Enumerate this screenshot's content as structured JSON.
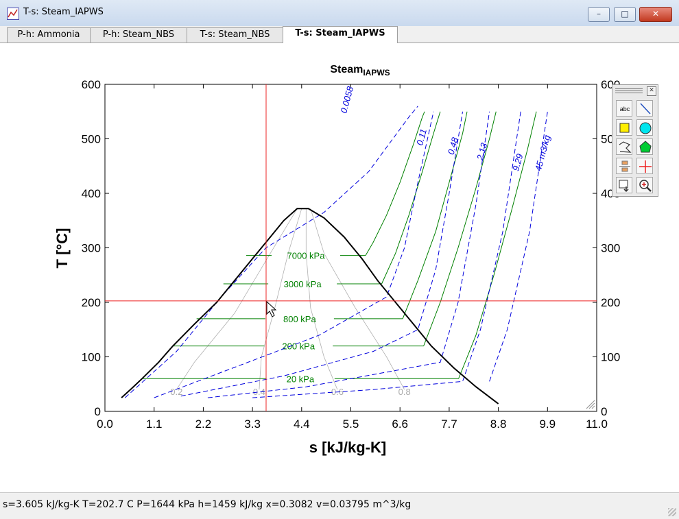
{
  "window": {
    "title": "T-s: Steam_IAPWS",
    "minimize": "–",
    "maximize": "□",
    "close": "✕"
  },
  "tabs": [
    {
      "label": "P-h: Ammonia",
      "active": false
    },
    {
      "label": "P-h: Steam_NBS",
      "active": false
    },
    {
      "label": "T-s: Steam_NBS",
      "active": false
    },
    {
      "label": "T-s: Steam_IAPWS",
      "active": true
    }
  ],
  "toolbox": {
    "close": "✕",
    "tools": [
      "text-tool",
      "line-tool",
      "rectangle-tool",
      "ellipse-tool",
      "polyline-tool",
      "polygon-tool",
      "symbol-tool",
      "crosshair-tool",
      "export-tool",
      "zoom-tool"
    ],
    "text_tool_label": "abc"
  },
  "status": "s=3.605 kJ/kg-K   T=202.7 C   P=1644 kPa   h=1459 kJ/kg   x=0.3082   v=0.03795 m^3/kg",
  "colors": {
    "isobar": "#008000",
    "isochore": "#0000dd",
    "dome": "#000000",
    "quality": "#b0b0b0",
    "cursor": "#ee2222"
  },
  "chart_data": {
    "type": "line",
    "title": "Steam",
    "title_subscript": "IAPWS",
    "xlabel": "s [kJ/kg-K]",
    "ylabel": "T [°C]",
    "xlim": [
      0,
      11
    ],
    "ylim": [
      0,
      600
    ],
    "xticks": [
      "0.0",
      "1.1",
      "2.2",
      "3.3",
      "4.4",
      "5.5",
      "6.6",
      "7.7",
      "8.8",
      "9.9",
      "11.0"
    ],
    "yticks": [
      "0",
      "100",
      "200",
      "300",
      "400",
      "500",
      "600"
    ],
    "cursor": {
      "s": 3.605,
      "T": 202.7
    },
    "saturation_dome": {
      "liquid": [
        [
          0.37,
          25
        ],
        [
          0.57,
          40
        ],
        [
          0.83,
          60
        ],
        [
          1.2,
          90
        ],
        [
          1.52,
          120
        ],
        [
          2.0,
          160
        ],
        [
          2.5,
          200
        ],
        [
          2.9,
          240
        ],
        [
          3.3,
          280
        ],
        [
          3.7,
          320
        ],
        [
          4.0,
          350
        ],
        [
          4.3,
          372
        ]
      ],
      "vapor": [
        [
          4.3,
          372
        ],
        [
          4.55,
          372
        ],
        [
          4.9,
          355
        ],
        [
          5.35,
          320
        ],
        [
          5.75,
          280
        ],
        [
          6.1,
          240
        ],
        [
          6.5,
          200
        ],
        [
          6.9,
          160
        ],
        [
          7.3,
          120
        ],
        [
          7.8,
          80
        ],
        [
          8.3,
          45
        ],
        [
          8.8,
          14
        ]
      ]
    },
    "isobars": [
      {
        "label": "7000 kPa",
        "T": 286,
        "s_liquid": 3.16,
        "s_vapor": 5.83,
        "superheat": [
          [
            5.83,
            286
          ],
          [
            6.0,
            310
          ],
          [
            6.3,
            360
          ],
          [
            6.6,
            420
          ],
          [
            6.9,
            490
          ],
          [
            7.1,
            540
          ],
          [
            7.15,
            550
          ]
        ]
      },
      {
        "label": "3000 kPa",
        "T": 234,
        "s_liquid": 2.65,
        "s_vapor": 6.19,
        "superheat": [
          [
            6.19,
            234
          ],
          [
            6.5,
            290
          ],
          [
            6.8,
            360
          ],
          [
            7.1,
            440
          ],
          [
            7.35,
            510
          ],
          [
            7.5,
            550
          ]
        ]
      },
      {
        "label": "800 kPa",
        "T": 170,
        "s_liquid": 2.05,
        "s_vapor": 6.66,
        "superheat": [
          [
            6.66,
            170
          ],
          [
            7.0,
            240
          ],
          [
            7.4,
            330
          ],
          [
            7.7,
            420
          ],
          [
            8.0,
            510
          ],
          [
            8.1,
            550
          ]
        ]
      },
      {
        "label": "200 kPa",
        "T": 120,
        "s_liquid": 1.53,
        "s_vapor": 7.13,
        "superheat": [
          [
            7.13,
            120
          ],
          [
            7.5,
            200
          ],
          [
            7.9,
            300
          ],
          [
            8.3,
            410
          ],
          [
            8.6,
            500
          ],
          [
            8.75,
            550
          ]
        ]
      },
      {
        "label": "20 kPa",
        "T": 60,
        "s_liquid": 0.83,
        "s_vapor": 7.91,
        "superheat": [
          [
            7.91,
            60
          ],
          [
            8.3,
            140
          ],
          [
            8.7,
            250
          ],
          [
            9.1,
            370
          ],
          [
            9.45,
            480
          ],
          [
            9.65,
            550
          ]
        ]
      }
    ],
    "quality_lines": [
      {
        "label": "0.2",
        "points": [
          [
            4.3,
            372
          ],
          [
            3.7,
            290
          ],
          [
            2.9,
            180
          ],
          [
            2.0,
            90
          ],
          [
            1.6,
            40
          ]
        ]
      },
      {
        "label": "0.4",
        "points": [
          [
            4.4,
            372
          ],
          [
            4.1,
            290
          ],
          [
            3.8,
            190
          ],
          [
            3.5,
            100
          ],
          [
            3.45,
            40
          ]
        ]
      },
      {
        "label": "0.6",
        "points": [
          [
            4.5,
            372
          ],
          [
            4.5,
            290
          ],
          [
            4.6,
            190
          ],
          [
            4.9,
            100
          ],
          [
            5.2,
            40
          ]
        ]
      },
      {
        "label": "0.8",
        "points": [
          [
            4.6,
            372
          ],
          [
            4.9,
            290
          ],
          [
            5.6,
            190
          ],
          [
            6.3,
            100
          ],
          [
            6.7,
            40
          ]
        ]
      }
    ],
    "isochores": [
      {
        "label": "0.0058",
        "points": [
          [
            0.45,
            25
          ],
          [
            1.6,
            110
          ],
          [
            2.6,
            210
          ],
          [
            3.6,
            300
          ],
          [
            4.9,
            365
          ],
          [
            5.9,
            440
          ],
          [
            6.8,
            540
          ],
          [
            7.0,
            560
          ]
        ],
        "label_at": [
          5.4,
          546
        ]
      },
      {
        "label": "0.11",
        "points": [
          [
            1.1,
            25
          ],
          [
            3.2,
            90
          ],
          [
            4.8,
            140
          ],
          [
            6.3,
            210
          ],
          [
            6.7,
            300
          ],
          [
            7.0,
            420
          ],
          [
            7.35,
            550
          ]
        ],
        "label_at": [
          7.1,
          487
        ]
      },
      {
        "label": "0.48",
        "points": [
          [
            1.7,
            28
          ],
          [
            4.0,
            65
          ],
          [
            6.0,
            110
          ],
          [
            7.0,
            150
          ],
          [
            7.4,
            260
          ],
          [
            7.7,
            400
          ],
          [
            8.0,
            550
          ]
        ],
        "label_at": [
          7.8,
          470
        ]
      },
      {
        "label": "2.13",
        "points": [
          [
            2.3,
            25
          ],
          [
            4.5,
            45
          ],
          [
            6.5,
            75
          ],
          [
            7.5,
            90
          ],
          [
            7.9,
            200
          ],
          [
            8.3,
            380
          ],
          [
            8.6,
            550
          ]
        ],
        "label_at": [
          8.45,
          460
        ]
      },
      {
        "label": "9.29",
        "points": [
          [
            3.3,
            25
          ],
          [
            6.0,
            40
          ],
          [
            8.0,
            55
          ],
          [
            8.4,
            150
          ],
          [
            8.9,
            330
          ],
          [
            9.3,
            550
          ]
        ],
        "label_at": [
          9.25,
          440
        ]
      },
      {
        "label": "45 m3/kg",
        "points": [
          [
            8.6,
            55
          ],
          [
            9.0,
            150
          ],
          [
            9.5,
            330
          ],
          [
            9.9,
            550
          ]
        ],
        "label_at": [
          9.75,
          440
        ]
      }
    ]
  }
}
